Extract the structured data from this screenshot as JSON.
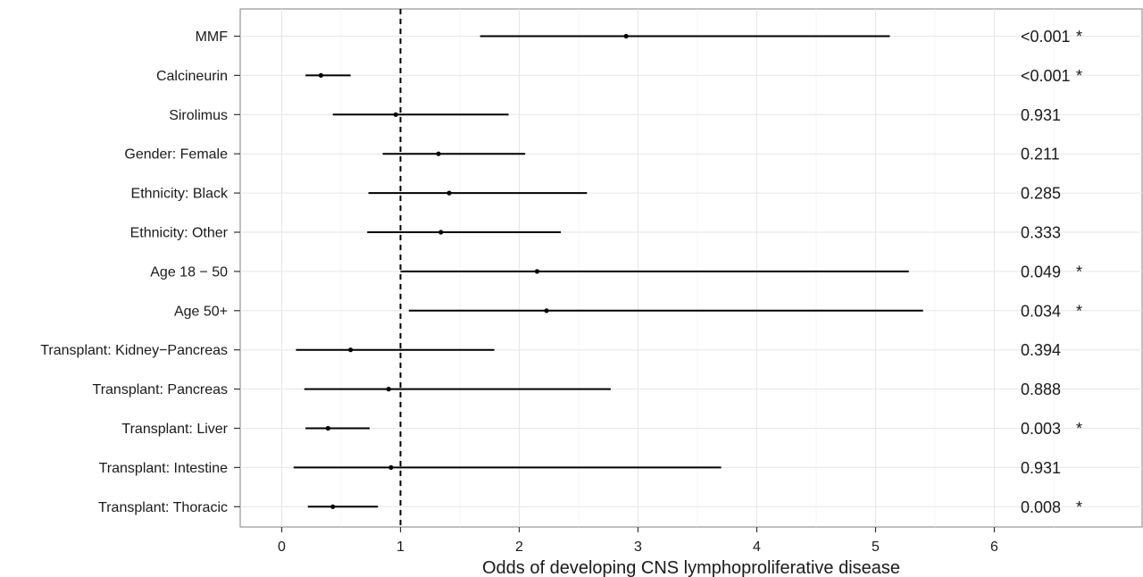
{
  "chart_data": {
    "type": "forest",
    "xlabel": "Odds of developing CNS lymphoproliferative disease",
    "xlim": [
      -0.35,
      7.0
    ],
    "x_ticks": [
      0,
      1,
      2,
      3,
      4,
      5,
      6
    ],
    "x_tick_labels": [
      "0",
      "1",
      "2",
      "3",
      "4",
      "5",
      "6"
    ],
    "reference_line": 1,
    "grid": true,
    "rows": [
      {
        "label": "MMF",
        "or": 2.9,
        "lower": 1.67,
        "upper": 5.12,
        "p": "<0.001",
        "sig": "*"
      },
      {
        "label": "Calcineurin",
        "or": 0.33,
        "lower": 0.2,
        "upper": 0.58,
        "p": "<0.001",
        "sig": "*"
      },
      {
        "label": "Sirolimus",
        "or": 0.96,
        "lower": 0.43,
        "upper": 1.91,
        "p": "0.931",
        "sig": ""
      },
      {
        "label": "Gender: Female",
        "or": 1.32,
        "lower": 0.85,
        "upper": 2.05,
        "p": "0.211",
        "sig": ""
      },
      {
        "label": "Ethnicity: Black",
        "or": 1.41,
        "lower": 0.73,
        "upper": 2.57,
        "p": "0.285",
        "sig": ""
      },
      {
        "label": "Ethnicity: Other",
        "or": 1.34,
        "lower": 0.72,
        "upper": 2.35,
        "p": "0.333",
        "sig": ""
      },
      {
        "label": "Age 18 − 50",
        "or": 2.15,
        "lower": 1.0,
        "upper": 5.28,
        "p": "0.049",
        "sig": "*"
      },
      {
        "label": "Age 50+",
        "or": 2.23,
        "lower": 1.07,
        "upper": 5.4,
        "p": "0.034",
        "sig": "*"
      },
      {
        "label": "Transplant: Kidney−Pancreas",
        "or": 0.58,
        "lower": 0.12,
        "upper": 1.79,
        "p": "0.394",
        "sig": ""
      },
      {
        "label": "Transplant: Pancreas",
        "or": 0.9,
        "lower": 0.19,
        "upper": 2.77,
        "p": "0.888",
        "sig": ""
      },
      {
        "label": "Transplant: Liver",
        "or": 0.39,
        "lower": 0.2,
        "upper": 0.74,
        "p": "0.003",
        "sig": "*"
      },
      {
        "label": "Transplant: Intestine",
        "or": 0.92,
        "lower": 0.1,
        "upper": 3.7,
        "p": "0.931",
        "sig": ""
      },
      {
        "label": "Transplant: Thoracic",
        "or": 0.43,
        "lower": 0.22,
        "upper": 0.81,
        "p": "0.008",
        "sig": "*"
      }
    ]
  }
}
